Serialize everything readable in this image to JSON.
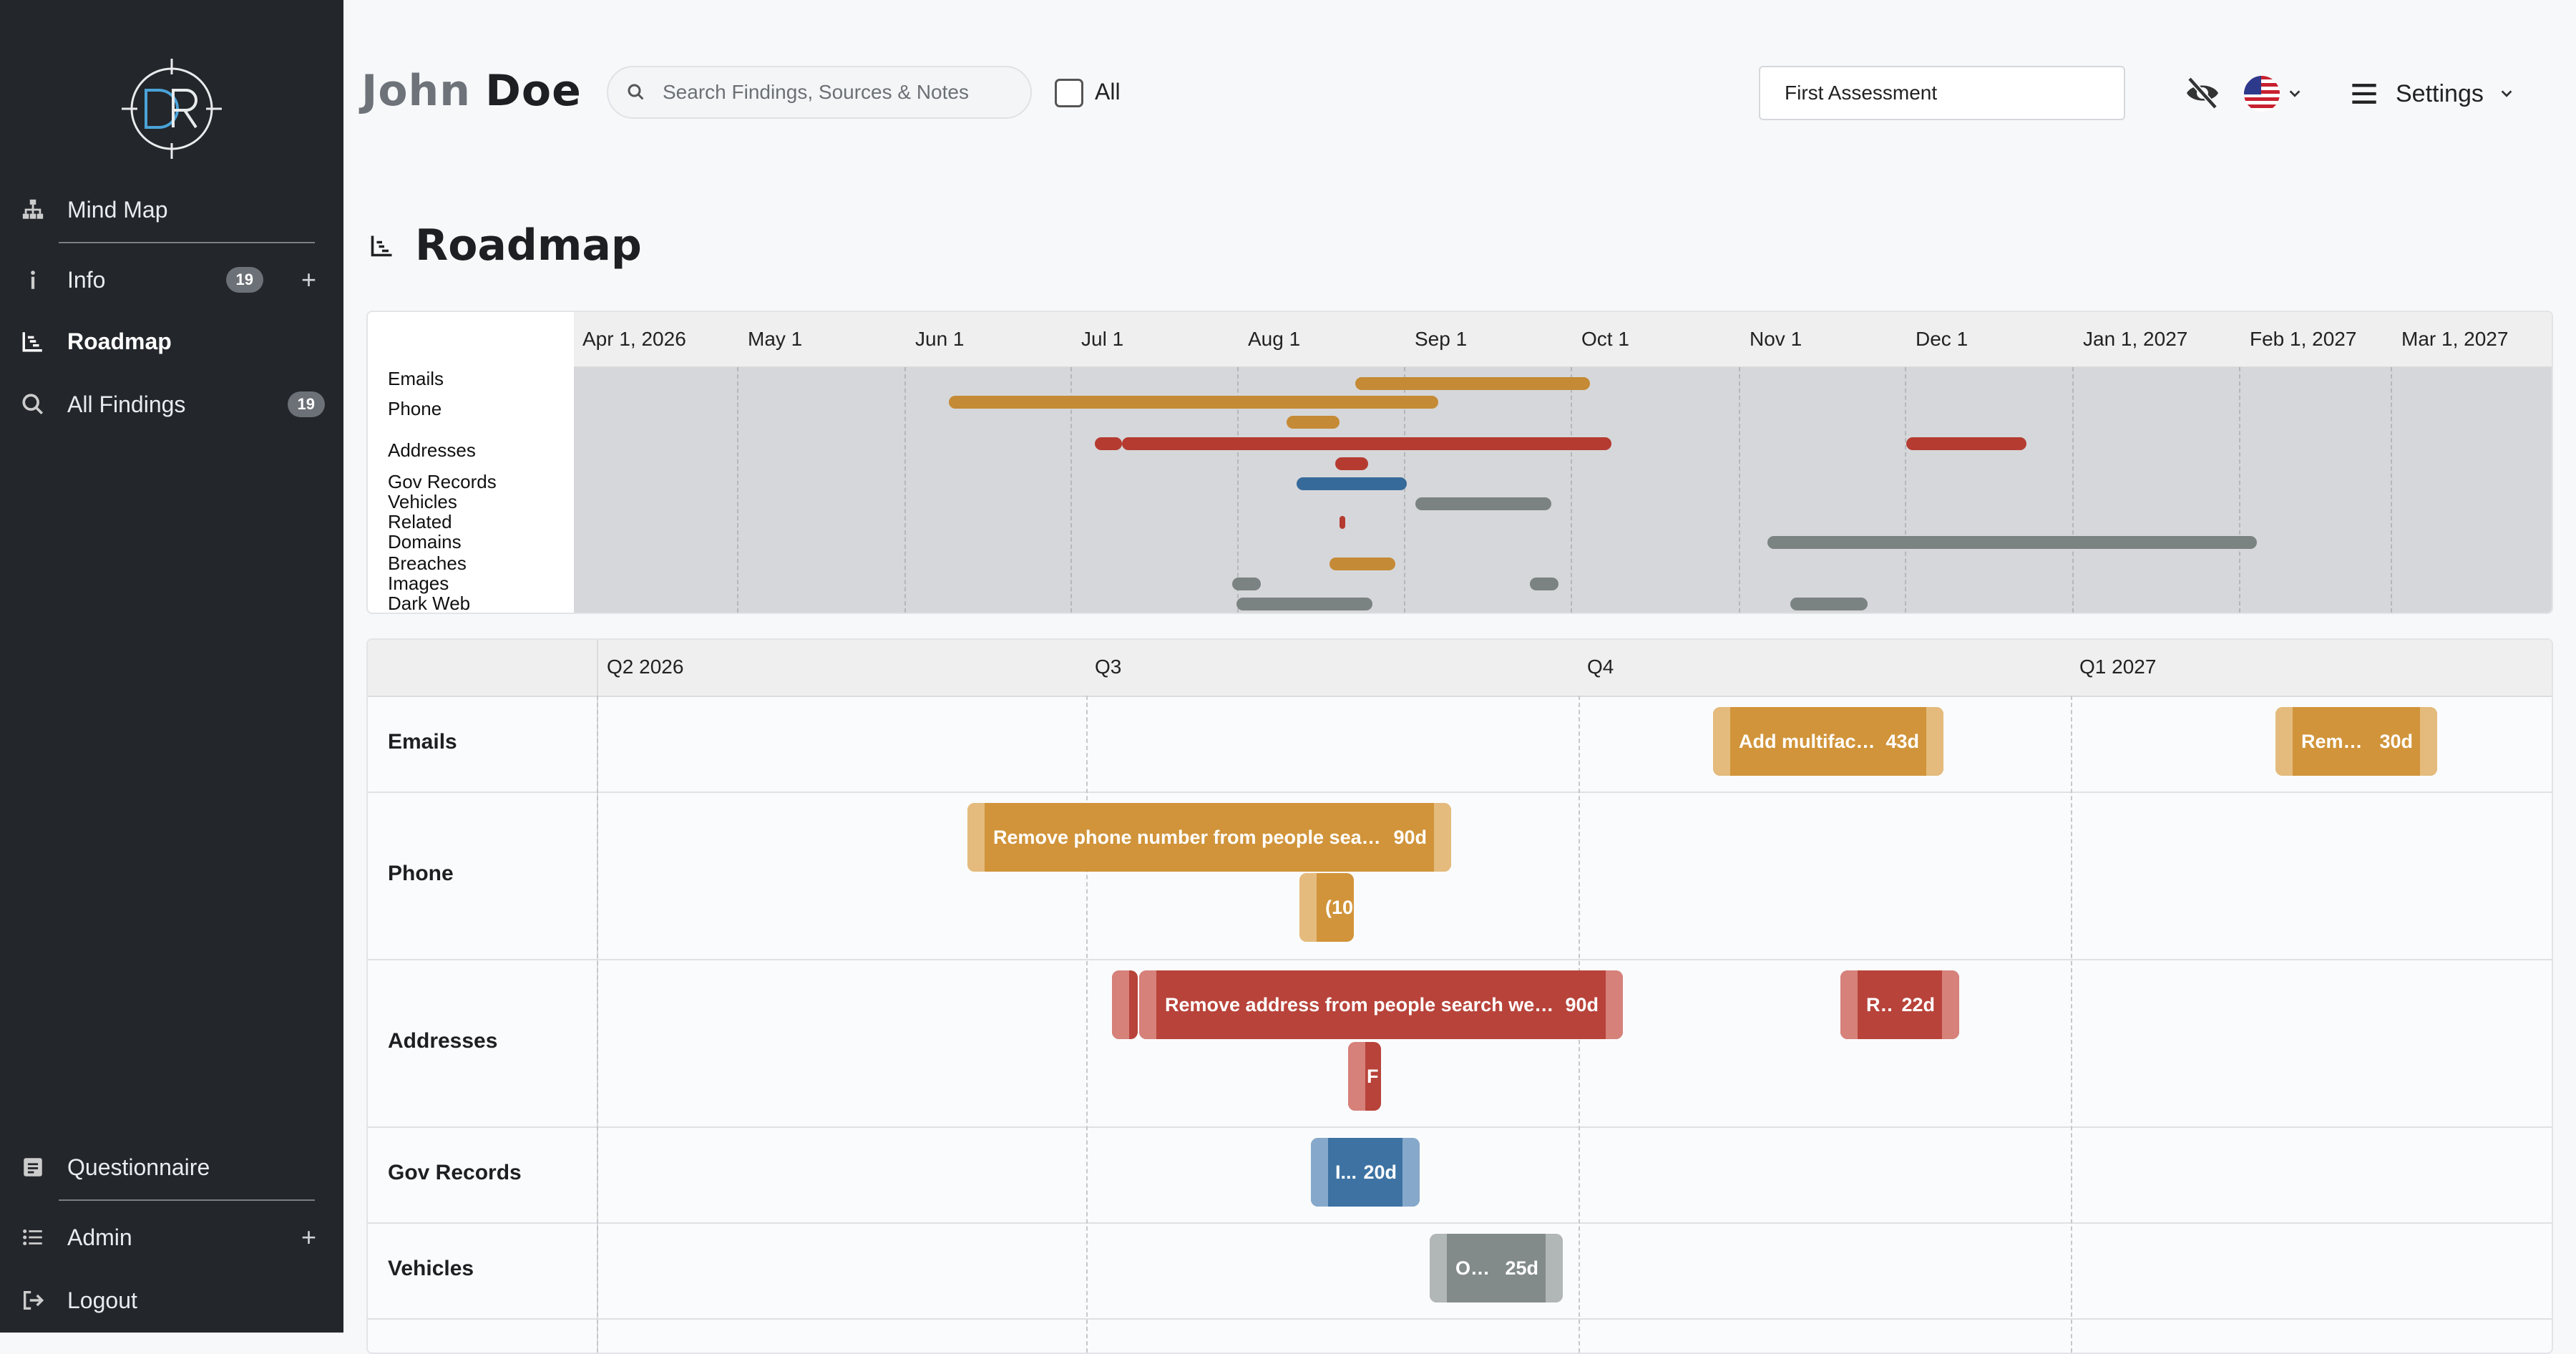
{
  "sidebar": {
    "items": [
      {
        "label": "Mind Map",
        "icon": "sitemap-icon"
      },
      {
        "label": "Info",
        "icon": "info-icon",
        "badge": "19"
      },
      {
        "label": "Roadmap",
        "icon": "chart-line-icon",
        "active": true
      },
      {
        "label": "All Findings",
        "icon": "search-icon",
        "badge": "19"
      },
      {
        "label": "Questionnaire",
        "icon": "form-icon"
      },
      {
        "label": "Admin",
        "icon": "list-icon"
      },
      {
        "label": "Logout",
        "icon": "logout-icon"
      }
    ]
  },
  "header": {
    "first_name": "John",
    "last_name": "Doe",
    "search_placeholder": "Search Findings, Sources & Notes",
    "all_label": "All",
    "assessment": "First Assessment",
    "settings_label": "Settings"
  },
  "page": {
    "title": "Roadmap"
  },
  "overview": {
    "months": [
      "Apr 1, 2026",
      "May 1",
      "Jun 1",
      "Jul 1",
      "Aug 1",
      "Sep 1",
      "Oct 1",
      "Nov 1",
      "Dec 1",
      "Jan 1, 2027",
      "Feb 1, 2027",
      "Mar 1, 2027"
    ],
    "categories": [
      "Emails",
      "Phone",
      "Addresses",
      "Gov Records",
      "Vehicles",
      "Related",
      "Domains",
      "Breaches",
      "Images",
      "Dark Web"
    ]
  },
  "gantt": {
    "quarters": [
      "Q2 2026",
      "Q3",
      "Q4",
      "Q1 2027"
    ],
    "rows": [
      {
        "label": "Emails"
      },
      {
        "label": "Phone"
      },
      {
        "label": "Addresses"
      },
      {
        "label": "Gov Records"
      },
      {
        "label": "Vehicles"
      }
    ],
    "tasks": {
      "emails_1": {
        "text": "Add multifact...",
        "duration": "43d"
      },
      "emails_2": {
        "text": "Remo...",
        "duration": "30d"
      },
      "phone_1": {
        "text": "Remove phone number from people searc...",
        "duration": "90d"
      },
      "phone_2": {
        "text": "(10",
        "duration": ""
      },
      "addr_1": {
        "text": "Remove address from people search web...",
        "duration": "90d"
      },
      "addr_2": {
        "text": "R...",
        "duration": "22d"
      },
      "addr_3": {
        "text": "F",
        "duration": ""
      },
      "gov_1": {
        "text": "I...",
        "duration": "20d"
      },
      "veh_1": {
        "text": "Op...",
        "duration": "25d"
      }
    }
  },
  "colors": {
    "orange": "#cf9236",
    "red": "#b74035",
    "blue": "#3b6f9e",
    "gray": "#7e8686"
  }
}
